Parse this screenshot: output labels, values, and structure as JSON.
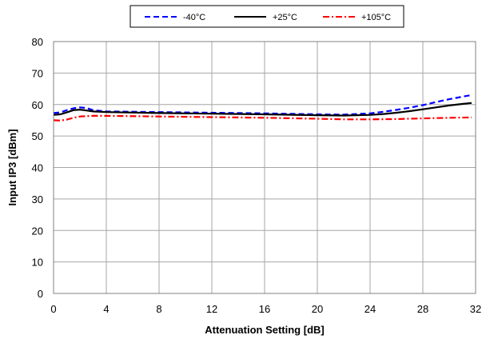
{
  "chart_data": {
    "type": "line",
    "xlabel": "Attenuation Setting [dB]",
    "ylabel": "Input IP3 [dBm]",
    "xlim": [
      0,
      32
    ],
    "ylim": [
      0,
      80
    ],
    "xticks": [
      0,
      4,
      8,
      12,
      16,
      20,
      24,
      28,
      32
    ],
    "yticks": [
      0,
      10,
      20,
      30,
      40,
      50,
      60,
      70,
      80
    ],
    "grid": true,
    "legend_position": "top",
    "series": [
      {
        "name": "-40°C",
        "color": "#0000ff",
        "dash": "dashed",
        "x": [
          0,
          0.5,
          1,
          1.5,
          2,
          2.5,
          3,
          4,
          8,
          12,
          16,
          20,
          22,
          24,
          25,
          26,
          27,
          28,
          29,
          30,
          31,
          31.7
        ],
        "y": [
          57.3,
          57.5,
          58.2,
          58.8,
          59.1,
          58.9,
          58.2,
          57.8,
          57.6,
          57.4,
          57.2,
          56.9,
          56.8,
          57.2,
          57.7,
          58.3,
          59.0,
          59.8,
          60.8,
          61.7,
          62.5,
          63.0
        ]
      },
      {
        "name": "+25°C",
        "color": "#000000",
        "dash": "solid",
        "x": [
          0,
          0.5,
          1,
          1.5,
          2,
          2.5,
          3,
          4,
          8,
          12,
          16,
          20,
          22,
          24,
          25,
          26,
          27,
          28,
          29,
          30,
          31,
          31.7
        ],
        "y": [
          56.7,
          56.9,
          57.5,
          58.2,
          58.4,
          58.1,
          57.8,
          57.6,
          57.3,
          57.1,
          56.9,
          56.6,
          56.5,
          56.7,
          57.0,
          57.4,
          57.9,
          58.5,
          59.1,
          59.7,
          60.2,
          60.5
        ]
      },
      {
        "name": "+105°C",
        "color": "#ff0000",
        "dash": "dashdot",
        "x": [
          0,
          0.5,
          1,
          1.5,
          2,
          2.5,
          3,
          4,
          8,
          12,
          16,
          20,
          22,
          24,
          26,
          28,
          30,
          31.7
        ],
        "y": [
          55.0,
          54.9,
          55.2,
          55.8,
          56.2,
          56.3,
          56.4,
          56.4,
          56.2,
          56.0,
          55.8,
          55.5,
          55.3,
          55.3,
          55.4,
          55.6,
          55.8,
          55.9
        ]
      }
    ]
  }
}
